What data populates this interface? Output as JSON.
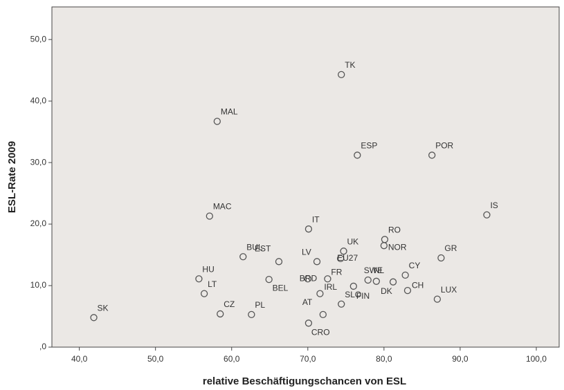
{
  "chart_data": {
    "type": "scatter",
    "x_label": "relative Beschäftigungschancen von ESL",
    "y_label": "ESL-Rate 2009",
    "point_labels": [
      "SK",
      "HU",
      "LT",
      "CZ",
      "MAL",
      "MAC",
      "BUL",
      "PL",
      "BEL",
      "EST",
      "LV",
      "IT",
      "CRO",
      "AT",
      "SLO",
      "IRL",
      "BRD",
      "FR",
      "EU27",
      "UK",
      "TK",
      "ESP",
      "FIN",
      "SWE",
      "NL",
      "DK",
      "RO",
      "NOR",
      "CY",
      "CH",
      "GR",
      "LUX",
      "POR",
      "IS"
    ],
    "x": [
      41.9,
      55.7,
      56.4,
      58.5,
      58.1,
      57.1,
      61.5,
      62.6,
      64.9,
      66.2,
      71.2,
      70.1,
      70.1,
      72.0,
      74.4,
      71.6,
      70.0,
      72.6,
      74.3,
      74.7,
      74.4,
      76.5,
      76.0,
      77.9,
      79.0,
      81.2,
      80.1,
      80.0,
      82.8,
      83.1,
      87.5,
      87.0,
      86.3,
      93.5
    ],
    "values": [
      4.8,
      11.1,
      8.7,
      5.4,
      36.7,
      21.3,
      14.7,
      5.3,
      11.0,
      13.9,
      13.9,
      19.2,
      3.9,
      5.3,
      7.0,
      8.7,
      11.1,
      11.1,
      14.4,
      15.6,
      44.3,
      31.2,
      9.9,
      10.9,
      10.7,
      10.6,
      17.5,
      16.5,
      11.7,
      9.2,
      14.5,
      7.8,
      31.2,
      21.5
    ],
    "color": "#555555",
    "xlim": [
      36.4,
      103
    ],
    "xticks": [
      {
        "value": 40,
        "label": "40,0"
      },
      {
        "value": 50,
        "label": "50,0"
      },
      {
        "value": 60,
        "label": "60,0"
      },
      {
        "value": 70,
        "label": "70,0"
      },
      {
        "value": 80,
        "label": "80,0"
      },
      {
        "value": 90,
        "label": "90,0"
      },
      {
        "value": 100,
        "label": "100,0"
      }
    ],
    "ylim": [
      0,
      55.3
    ],
    "yticks": [
      {
        "value": 0,
        "label": ",0"
      },
      {
        "value": 10,
        "label": "10,0"
      },
      {
        "value": 20,
        "label": "20,0"
      },
      {
        "value": 30,
        "label": "30,0"
      },
      {
        "value": 40,
        "label": "40,0"
      },
      {
        "value": 50,
        "label": "50,0"
      }
    ]
  }
}
